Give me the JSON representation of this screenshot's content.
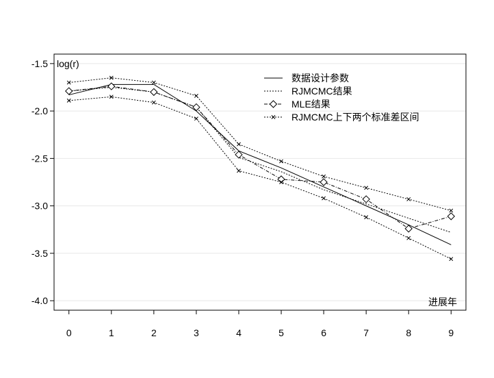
{
  "chart_data": {
    "type": "line",
    "xlabel": "进展年",
    "ylabel": "log(r)",
    "xlim": [
      -0.35,
      9.35
    ],
    "ylim": [
      -4.1,
      -1.4
    ],
    "x_ticks": [
      "0",
      "1",
      "2",
      "3",
      "4",
      "5",
      "6",
      "7",
      "8",
      "9"
    ],
    "y_ticks": [
      "-1.5",
      "-2.0",
      "-2.5",
      "-3.0",
      "-3.5",
      "-4.0"
    ],
    "grid": "horizontal",
    "legend_position": "top-right",
    "x": [
      0,
      1,
      2,
      3,
      4,
      5,
      6,
      7,
      8,
      9
    ],
    "series": [
      {
        "name": "数据设计参数",
        "style": "solid",
        "marker": "none",
        "values": [
          -1.83,
          -1.72,
          -1.72,
          -2.0,
          -2.42,
          -2.6,
          -2.8,
          -3.0,
          -3.2,
          -3.41
        ]
      },
      {
        "name": "RJMCMC结果",
        "style": "dotted",
        "marker": "none",
        "values": [
          -1.79,
          -1.75,
          -1.8,
          -1.96,
          -2.49,
          -2.64,
          -2.83,
          -2.98,
          -3.13,
          -3.28
        ]
      },
      {
        "name": "MLE结果",
        "style": "dashdot",
        "marker": "diamond",
        "values": [
          -1.79,
          -1.74,
          -1.8,
          -1.96,
          -2.46,
          -2.72,
          -2.75,
          -2.93,
          -3.24,
          -3.11
        ]
      },
      {
        "name": "RJMCMC上下两个标准差区间",
        "style": "dotted",
        "marker": "x",
        "values": [
          -1.7,
          -1.65,
          -1.7,
          -1.84,
          -2.35,
          -2.53,
          -2.69,
          -2.81,
          -2.93,
          -3.05
        ]
      },
      {
        "name": "",
        "style": "dotted",
        "marker": "x",
        "values": [
          -1.89,
          -1.85,
          -1.91,
          -2.08,
          -2.63,
          -2.75,
          -2.92,
          -3.12,
          -3.34,
          -3.56
        ]
      }
    ]
  }
}
